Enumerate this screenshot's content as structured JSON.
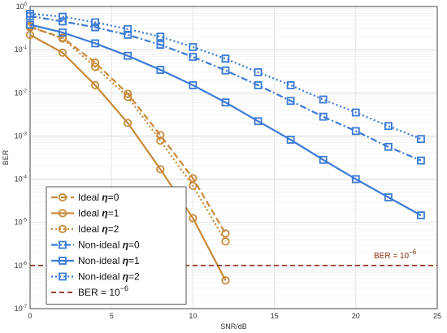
{
  "chart_data": {
    "type": "line",
    "xlabel": "SNR/dB",
    "ylabel": "BER",
    "xlim": [
      0,
      25
    ],
    "ylim": [
      1e-07,
      1
    ],
    "yscale": "log",
    "grid": true,
    "legend_position": "bottom-left",
    "x_ticks": [
      "0",
      "5",
      "10",
      "15",
      "20",
      "25"
    ],
    "y_ticks": [
      {
        "base": "10",
        "exp": "0"
      },
      {
        "base": "10",
        "exp": "-1"
      },
      {
        "base": "10",
        "exp": "-2"
      },
      {
        "base": "10",
        "exp": "-3"
      },
      {
        "base": "10",
        "exp": "-4"
      },
      {
        "base": "10",
        "exp": "-5"
      },
      {
        "base": "10",
        "exp": "-6"
      },
      {
        "base": "10",
        "exp": "-7"
      }
    ],
    "series": [
      {
        "name_pre": "Ideal ",
        "name_sym": "η",
        "name_post": "=0",
        "color": "#c88a3a",
        "dash": "8,4",
        "marker": "circle",
        "x": [
          0,
          2,
          4,
          6,
          8,
          10,
          12
        ],
        "y": [
          0.33,
          0.19,
          0.05,
          0.0095,
          0.00105,
          0.000105,
          5.5e-06
        ]
      },
      {
        "name_pre": "Ideal ",
        "name_sym": "η",
        "name_post": "=1",
        "color": "#c88a3a",
        "dash": "",
        "marker": "circle",
        "x": [
          0,
          2,
          4,
          6,
          8,
          10,
          12
        ],
        "y": [
          0.22,
          0.085,
          0.015,
          0.002,
          0.00017,
          1.25e-05,
          4.5e-07
        ]
      },
      {
        "name_pre": "Ideal ",
        "name_sym": "η",
        "name_post": "=2",
        "color": "#c88a3a",
        "dash": "2,3",
        "marker": "circle",
        "x": [
          0,
          2,
          4,
          6,
          8,
          10,
          12
        ],
        "y": [
          0.35,
          0.18,
          0.04,
          0.008,
          0.00078,
          7e-05,
          3.6e-06
        ]
      },
      {
        "name_pre": "Non-ideal ",
        "name_sym": "η",
        "name_post": "=0",
        "color": "#3a7ad6",
        "dash": "8,3,2,3",
        "marker": "square",
        "x": [
          0,
          2,
          4,
          6,
          8,
          10,
          12,
          14,
          16,
          18,
          20,
          22,
          24
        ],
        "y": [
          0.6,
          0.45,
          0.33,
          0.22,
          0.13,
          0.068,
          0.033,
          0.015,
          0.0065,
          0.0028,
          0.0013,
          0.00056,
          0.00027
        ]
      },
      {
        "name_pre": "Non-ideal ",
        "name_sym": "η",
        "name_post": "=1",
        "color": "#3a7ad6",
        "dash": "",
        "marker": "square",
        "x": [
          0,
          2,
          4,
          6,
          8,
          10,
          12,
          14,
          16,
          18,
          20,
          22,
          24
        ],
        "y": [
          0.38,
          0.25,
          0.14,
          0.072,
          0.034,
          0.015,
          0.006,
          0.0022,
          0.00082,
          0.00028,
          0.0001,
          3.8e-05,
          1.45e-05
        ]
      },
      {
        "name_pre": "Non-ideal ",
        "name_sym": "η",
        "name_post": "=2",
        "color": "#3a7ad6",
        "dash": "2,3",
        "marker": "square",
        "x": [
          0,
          2,
          4,
          6,
          8,
          10,
          12,
          14,
          16,
          18,
          20,
          22,
          24
        ],
        "y": [
          0.68,
          0.58,
          0.43,
          0.3,
          0.2,
          0.115,
          0.062,
          0.03,
          0.015,
          0.007,
          0.0035,
          0.0017,
          0.00085
        ]
      },
      {
        "name_pre": "BER = 10",
        "name_sym": "",
        "name_post": "",
        "name_sup": "−6",
        "color": "#8b2a0a",
        "dash": "6,4",
        "marker": "none",
        "x": [
          0,
          25
        ],
        "y": [
          1e-06,
          1e-06
        ]
      }
    ],
    "annotation": {
      "text": "BER = 10",
      "sup": "−6"
    }
  }
}
